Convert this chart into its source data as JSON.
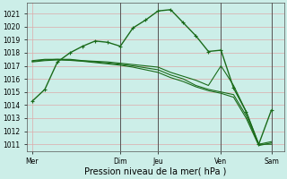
{
  "title": "",
  "xlabel": "Pression niveau de la mer( hPa )",
  "background_color": "#cceee8",
  "plot_bg_color": "#cceee8",
  "grid_color": "#ddaaaa",
  "line_color": "#1a6b1a",
  "ylim": [
    1010.5,
    1021.8
  ],
  "yticks": [
    1011,
    1012,
    1013,
    1014,
    1015,
    1016,
    1017,
    1018,
    1019,
    1020,
    1021
  ],
  "x_day_labels": [
    "Mer",
    "Dim",
    "Jeu",
    "Ven",
    "Sam"
  ],
  "x_day_positions": [
    0,
    35,
    50,
    75,
    95
  ],
  "xlim": [
    -2,
    100
  ],
  "lines": [
    {
      "x": [
        0,
        5,
        10,
        15,
        20,
        25,
        30,
        35,
        40,
        45,
        50,
        55,
        60,
        65,
        70,
        75,
        80,
        85,
        90,
        95
      ],
      "y": [
        1014.3,
        1015.2,
        1017.3,
        1018.0,
        1018.5,
        1018.9,
        1018.8,
        1018.5,
        1019.9,
        1020.5,
        1021.2,
        1021.3,
        1020.3,
        1019.3,
        1018.1,
        1018.2,
        1015.3,
        1013.5,
        1011.0,
        1013.6
      ],
      "marker": true,
      "lw": 1.0
    },
    {
      "x": [
        0,
        5,
        10,
        15,
        20,
        25,
        30,
        35,
        40,
        45,
        50,
        55,
        60,
        65,
        70,
        75,
        80,
        85,
        90,
        95
      ],
      "y": [
        1017.4,
        1017.5,
        1017.5,
        1017.5,
        1017.4,
        1017.35,
        1017.3,
        1017.2,
        1017.1,
        1017.0,
        1016.9,
        1016.5,
        1016.2,
        1015.9,
        1015.5,
        1017.0,
        1015.5,
        1013.5,
        1011.0,
        1011.0
      ],
      "marker": false,
      "lw": 0.8
    },
    {
      "x": [
        0,
        5,
        10,
        15,
        20,
        25,
        30,
        35,
        40,
        45,
        50,
        55,
        60,
        65,
        70,
        75,
        80,
        85,
        90,
        95
      ],
      "y": [
        1017.35,
        1017.45,
        1017.5,
        1017.45,
        1017.38,
        1017.3,
        1017.22,
        1017.12,
        1017.0,
        1016.85,
        1016.7,
        1016.3,
        1016.0,
        1015.5,
        1015.2,
        1015.0,
        1014.8,
        1013.2,
        1011.0,
        1011.2
      ],
      "marker": false,
      "lw": 0.8
    },
    {
      "x": [
        0,
        5,
        10,
        15,
        20,
        25,
        30,
        35,
        40,
        45,
        50,
        55,
        60,
        65,
        70,
        75,
        80,
        85,
        90,
        95
      ],
      "y": [
        1017.3,
        1017.4,
        1017.45,
        1017.42,
        1017.35,
        1017.25,
        1017.15,
        1017.05,
        1016.9,
        1016.7,
        1016.5,
        1016.1,
        1015.8,
        1015.4,
        1015.1,
        1014.9,
        1014.6,
        1013.0,
        1010.9,
        1011.1
      ],
      "marker": false,
      "lw": 0.8
    }
  ],
  "vlines_x": [
    35,
    50,
    75,
    95
  ],
  "vline_color": "#555555",
  "tick_fontsize": 5.5,
  "xlabel_fontsize": 7
}
